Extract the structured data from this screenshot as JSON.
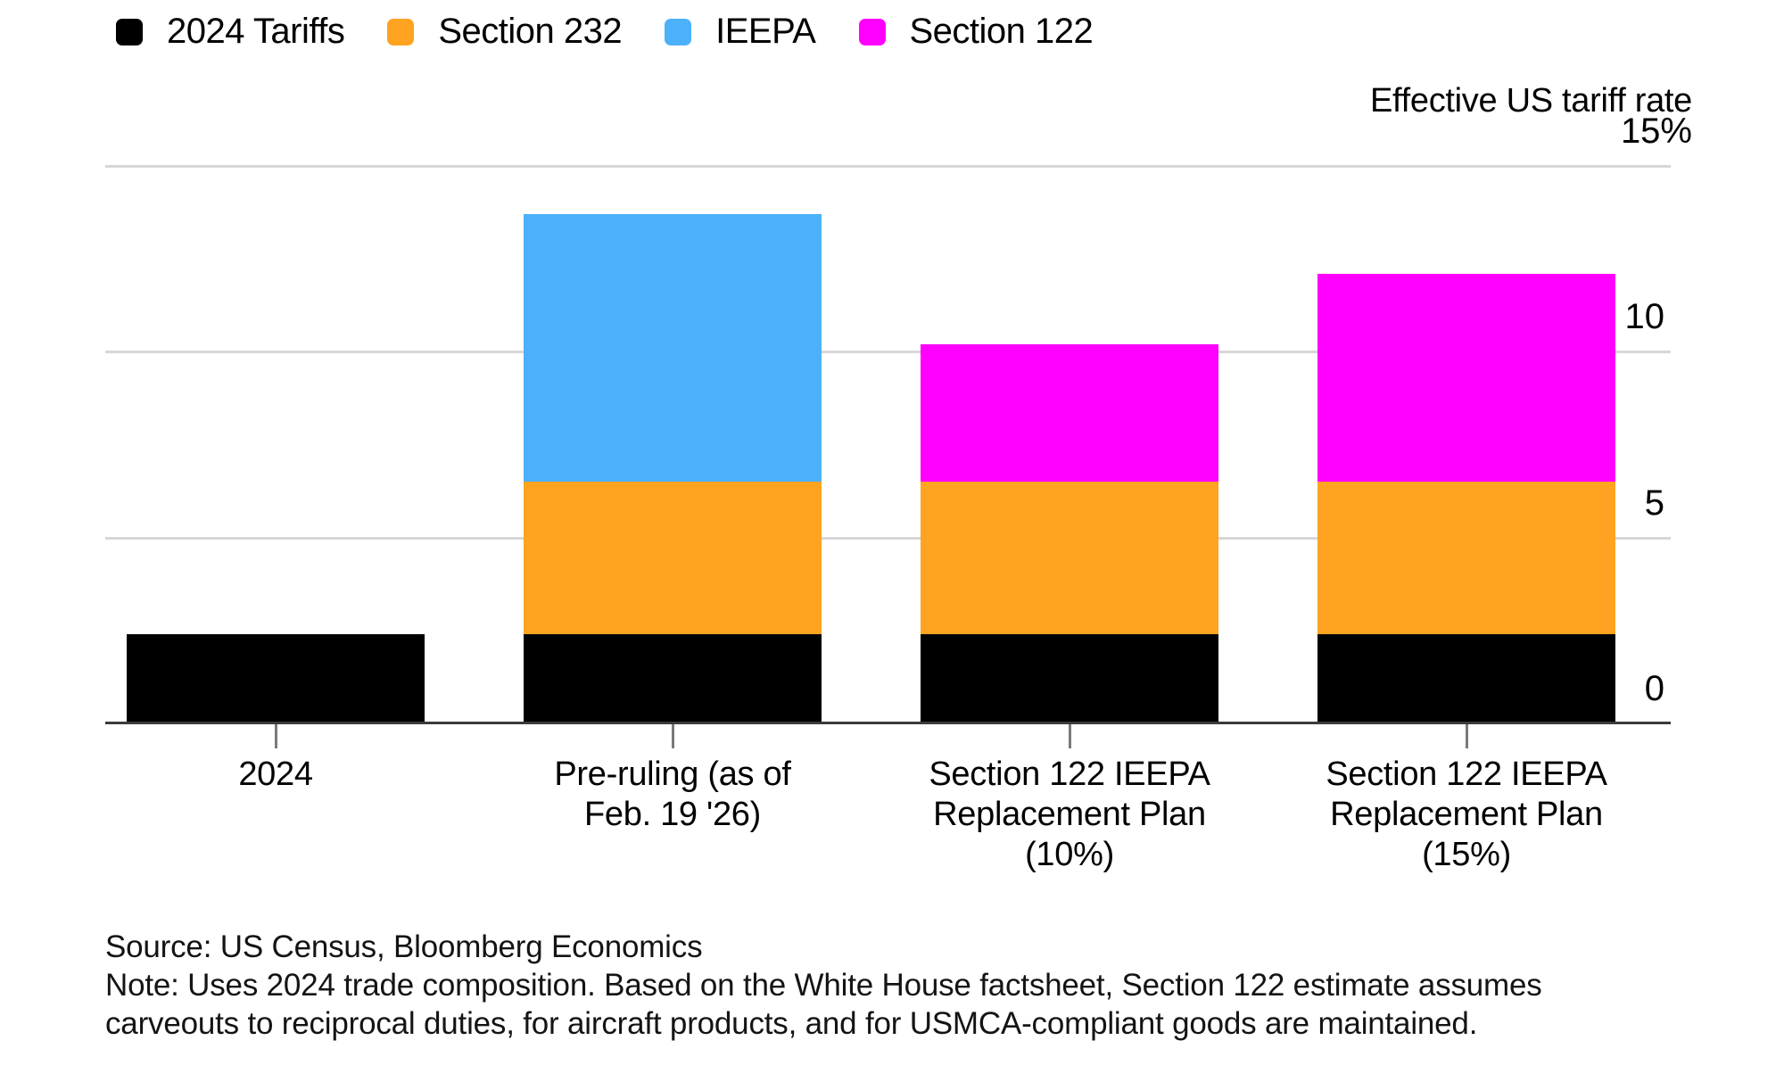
{
  "colors": {
    "background": "#ffffff",
    "grid": "#d7d7d7",
    "axis_line": "#3b3b3b",
    "tick_mark": "#7a7a7a",
    "text": "#000000",
    "footer_text": "#141414",
    "black_series": "#000000",
    "orange_series": "#ffa320",
    "blue_series": "#4cb1f8",
    "magenta_series": "#ff00ff"
  },
  "legend": {
    "items": [
      {
        "key": "tariffs_2024",
        "label": "2024 Tariffs",
        "color": "#000000"
      },
      {
        "key": "section_232",
        "label": "Section 232",
        "color": "#ffa320"
      },
      {
        "key": "ieepa",
        "label": "IEEPA",
        "color": "#4cb1f8"
      },
      {
        "key": "section_122",
        "label": "Section 122",
        "color": "#ff00ff"
      }
    ]
  },
  "axis": {
    "title": "Effective US tariff rate",
    "ticks": [
      {
        "value": 0,
        "label": "0",
        "suffix": ""
      },
      {
        "value": 5,
        "label": "5",
        "suffix": ""
      },
      {
        "value": 10,
        "label": "10",
        "suffix": ""
      },
      {
        "value": 15,
        "label": "15",
        "suffix": "%"
      }
    ]
  },
  "chart_data": {
    "type": "bar",
    "stacked": true,
    "title": "Effective US tariff rate",
    "unit": "%",
    "ylim": [
      0,
      15
    ],
    "grid": "horizontal",
    "legend_position": "top-left",
    "categories": [
      "2024",
      "Pre-ruling (as of Feb. 19 '26)",
      "Section 122 IEEPA Replacement Plan (10%)",
      "Section 122 IEEPA Replacement Plan (15%)"
    ],
    "series": [
      {
        "name": "2024 Tariffs",
        "color": "#000000",
        "values": [
          2.4,
          2.4,
          2.4,
          2.4
        ]
      },
      {
        "name": "Section 232",
        "color": "#ffa320",
        "values": [
          0,
          4.1,
          4.1,
          4.1
        ]
      },
      {
        "name": "IEEPA",
        "color": "#4cb1f8",
        "values": [
          0,
          7.2,
          0,
          0
        ]
      },
      {
        "name": "Section 122",
        "color": "#ff00ff",
        "values": [
          0,
          0,
          3.7,
          5.6
        ]
      }
    ]
  },
  "x_axis": {
    "labels": [
      [
        "2024"
      ],
      [
        "Pre-ruling (as of",
        "Feb. 19 '26)"
      ],
      [
        "Section 122 IEEPA",
        "Replacement Plan",
        "(10%)"
      ],
      [
        "Section 122 IEEPA",
        "Replacement Plan",
        "(15%)"
      ]
    ]
  },
  "footer": {
    "source": "Source: US Census, Bloomberg Economics",
    "note_lines": [
      "Note: Uses 2024 trade composition. Based on the White House factsheet, Section 122 estimate assumes",
      "carveouts to reciprocal duties, for aircraft products, and for USMCA-compliant goods are maintained."
    ]
  }
}
